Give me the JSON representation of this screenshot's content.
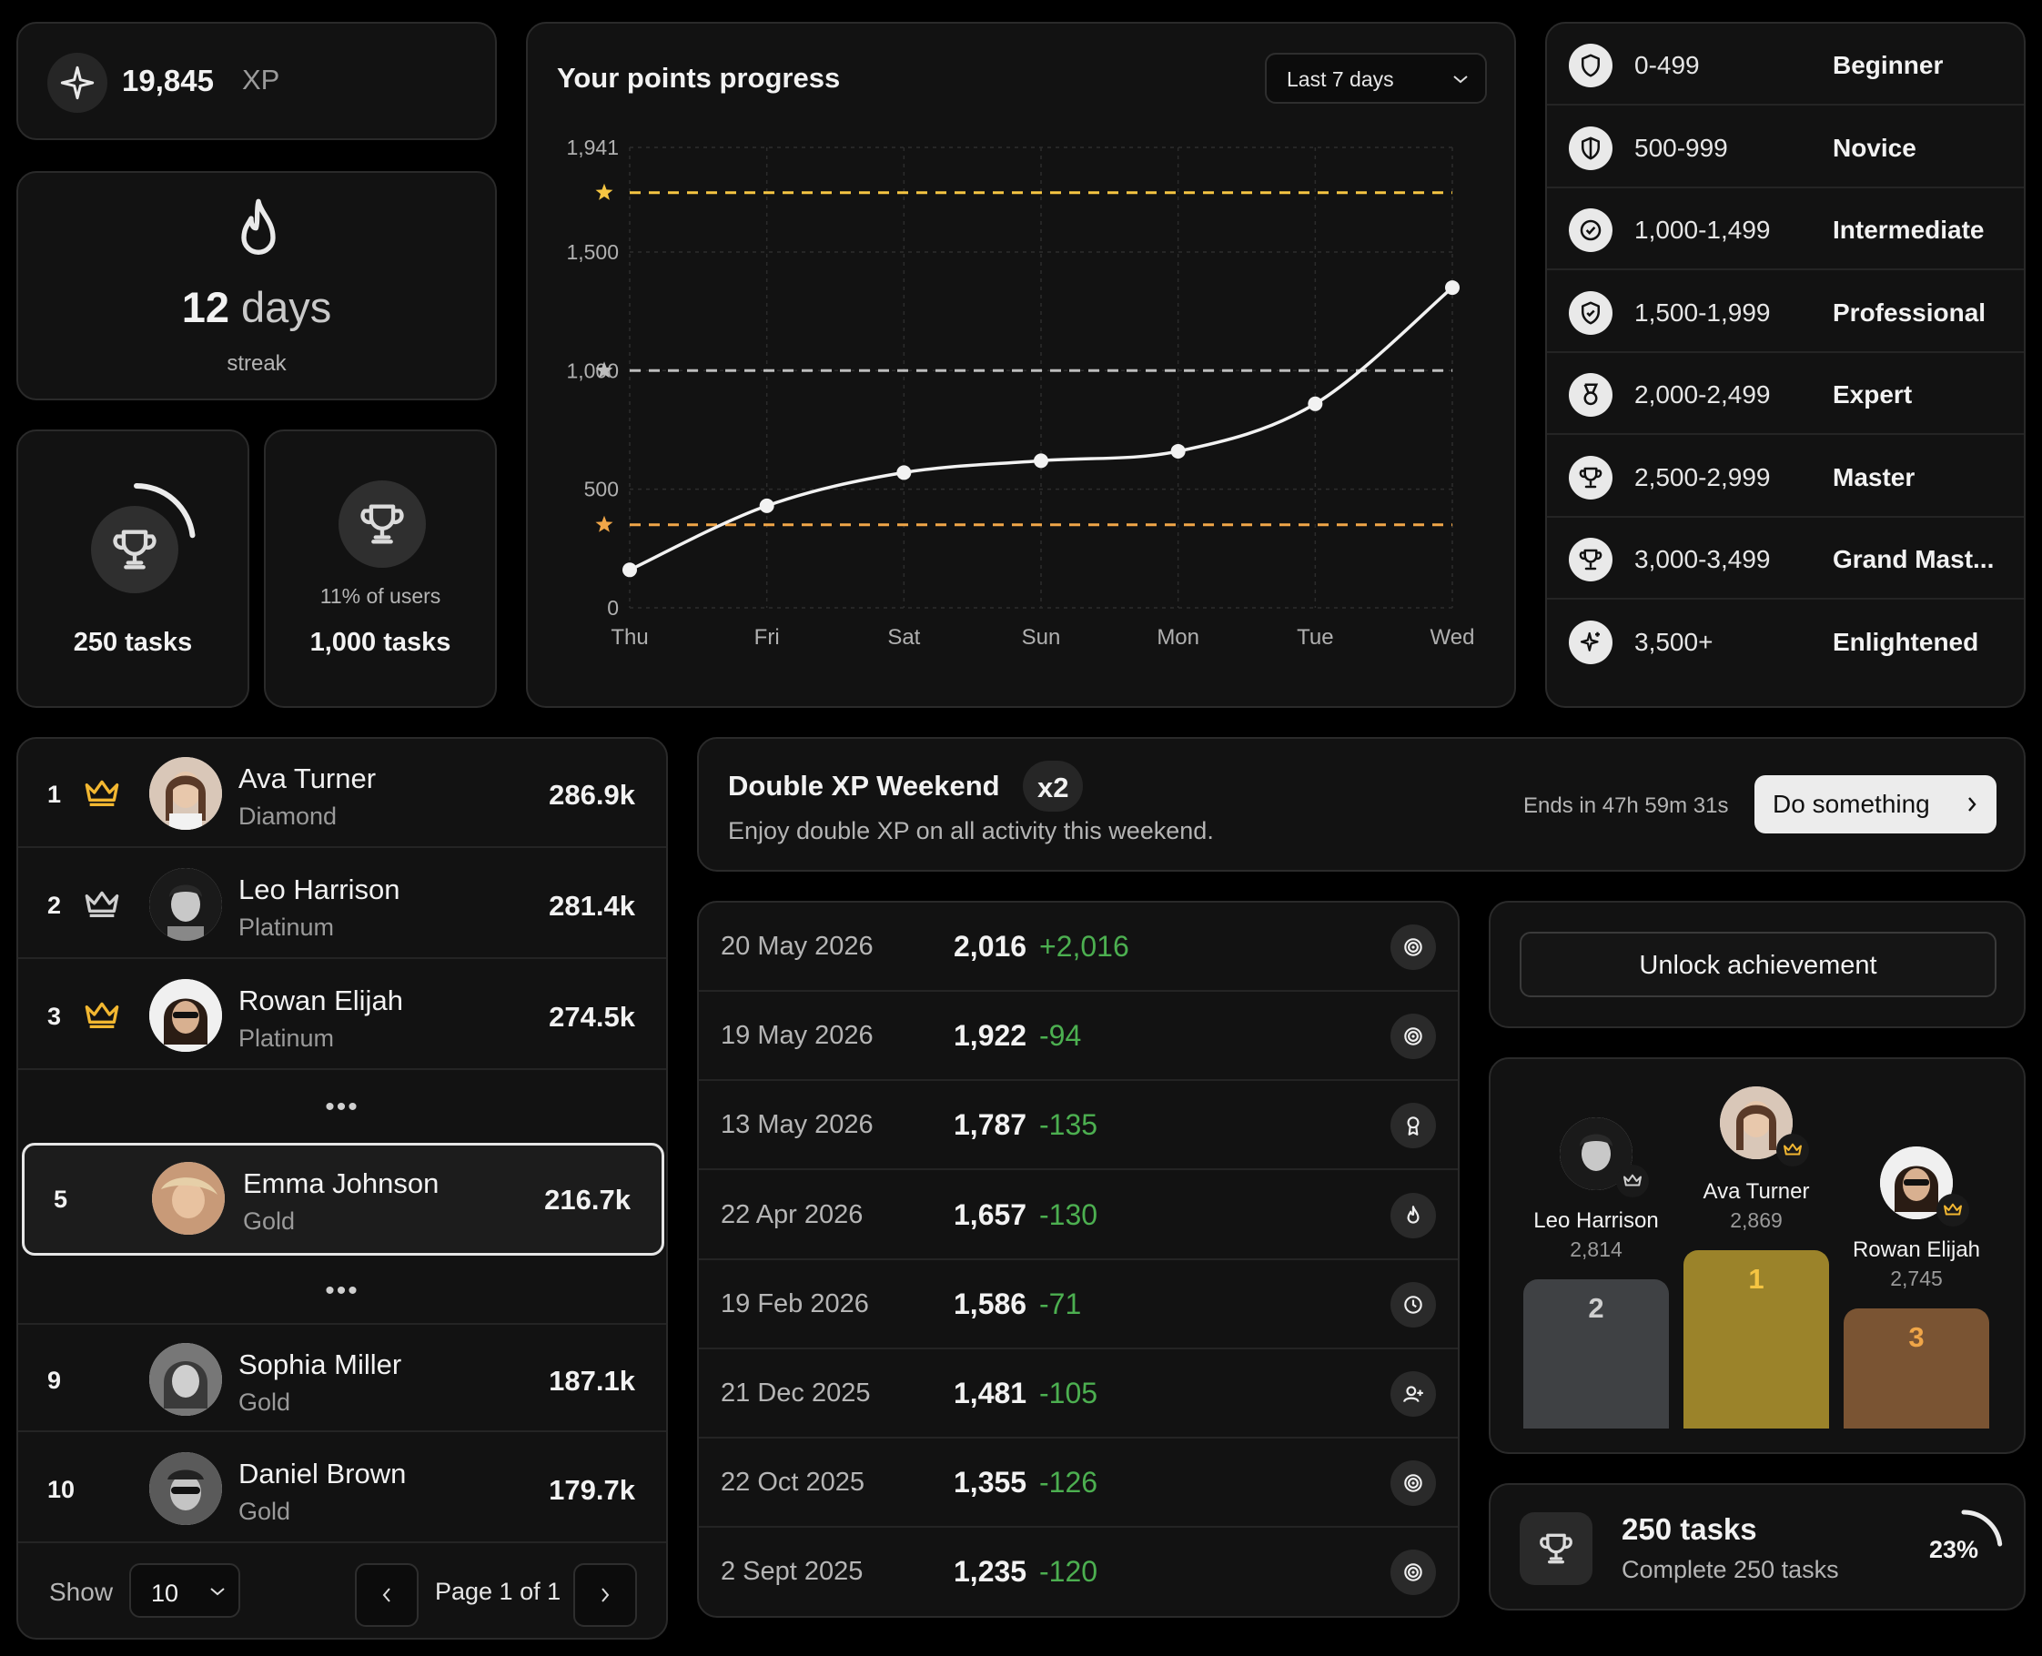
{
  "xp": {
    "value": "19,845",
    "unit": "XP",
    "icon": "sparkle-icon"
  },
  "streak": {
    "number": "12",
    "unit": "days",
    "label": "streak",
    "icon": "flame-icon"
  },
  "tasks": [
    {
      "label": "250 tasks",
      "progress": 0.23,
      "icon": "trophy-icon"
    },
    {
      "label": "1,000 tasks",
      "sub": "11% of users",
      "icon": "trophy-icon"
    }
  ],
  "chart": {
    "title": "Your points progress",
    "range_label": "Last 7 days"
  },
  "chart_data": {
    "type": "line",
    "categories": [
      "Thu",
      "Fri",
      "Sat",
      "Sun",
      "Mon",
      "Tue",
      "Wed"
    ],
    "values": [
      160,
      430,
      570,
      620,
      660,
      860,
      1350
    ],
    "y_ticks": [
      "0",
      "500",
      "1,000",
      "1,500",
      "1,941"
    ],
    "ylim": [
      0,
      1941
    ],
    "reference_lines": [
      {
        "value": 1750,
        "color": "#f5c542"
      },
      {
        "value": 1000,
        "color": "#bdbdbd"
      },
      {
        "value": 350,
        "color": "#f0a648"
      }
    ],
    "grid": true
  },
  "levels": [
    {
      "range": "0-499",
      "name": "Beginner",
      "icon": "shield-icon"
    },
    {
      "range": "500-999",
      "name": "Novice",
      "icon": "half-shield-icon"
    },
    {
      "range": "1,000-1,499",
      "name": "Intermediate",
      "icon": "badge-check-icon"
    },
    {
      "range": "1,500-1,999",
      "name": "Professional",
      "icon": "shield-check-icon"
    },
    {
      "range": "2,000-2,499",
      "name": "Expert",
      "icon": "medal-icon"
    },
    {
      "range": "2,500-2,999",
      "name": "Master",
      "icon": "trophy-icon"
    },
    {
      "range": "3,000-3,499",
      "name": "Grand Mast...",
      "icon": "trophy-icon"
    },
    {
      "range": "3,500+",
      "name": "Enlightened",
      "icon": "sparkles-icon"
    }
  ],
  "leaderboard": {
    "rows": [
      {
        "rank": "1",
        "name": "Ava Turner",
        "tier": "Diamond",
        "score": "286.9k",
        "crown": "#f2b731"
      },
      {
        "rank": "2",
        "name": "Leo Harrison",
        "tier": "Platinum",
        "score": "281.4k",
        "crown": "#cfcfcf"
      },
      {
        "rank": "3",
        "name": "Rowan Elijah",
        "tier": "Platinum",
        "score": "274.5k",
        "crown": "#f2b731"
      }
    ],
    "current": {
      "rank": "5",
      "name": "Emma Johnson",
      "tier": "Gold",
      "score": "216.7k"
    },
    "rows_bottom": [
      {
        "rank": "9",
        "name": "Sophia Miller",
        "tier": "Gold",
        "score": "187.1k"
      },
      {
        "rank": "10",
        "name": "Daniel Brown",
        "tier": "Gold",
        "score": "179.7k"
      }
    ],
    "dots": "•••",
    "show_label": "Show",
    "show_value": "10",
    "page_text": "Page 1 of 1"
  },
  "banner": {
    "title": "Double XP Weekend",
    "badge": "x2",
    "description": "Enjoy double XP on all activity this weekend.",
    "ends": "Ends in 47h 59m 31s",
    "button": "Do something"
  },
  "history": [
    {
      "date": "20 May 2026",
      "value": "2,016",
      "delta": "+2,016",
      "icon": "target-icon"
    },
    {
      "date": "19 May 2026",
      "value": "1,922",
      "delta": "-94",
      "icon": "target-icon"
    },
    {
      "date": "13 May 2026",
      "value": "1,787",
      "delta": "-135",
      "icon": "award-icon"
    },
    {
      "date": "22 Apr 2026",
      "value": "1,657",
      "delta": "-130",
      "icon": "flame-icon"
    },
    {
      "date": "19 Feb 2026",
      "value": "1,586",
      "delta": "-71",
      "icon": "clock-icon"
    },
    {
      "date": "21 Dec 2025",
      "value": "1,481",
      "delta": "-105",
      "icon": "user-plus-icon"
    },
    {
      "date": "22 Oct 2025",
      "value": "1,355",
      "delta": "-126",
      "icon": "target-icon"
    },
    {
      "date": "2 Sept 2025",
      "value": "1,235",
      "delta": "-120",
      "icon": "target-icon"
    }
  ],
  "unlock": {
    "button": "Unlock achievement"
  },
  "podium": {
    "first": {
      "name": "Ava Turner",
      "score": "2,869",
      "place": "1",
      "color": "#9b832a",
      "place_color": "#f5c542"
    },
    "second": {
      "name": "Leo Harrison",
      "score": "2,814",
      "place": "2",
      "color": "#3f4144",
      "place_color": "#cfcfcf"
    },
    "third": {
      "name": "Rowan Elijah",
      "score": "2,745",
      "place": "3",
      "color": "#7a5433",
      "place_color": "#f0a648"
    }
  },
  "goal": {
    "title": "250 tasks",
    "description": "Complete 250 tasks",
    "percent": "23%",
    "progress": 0.23
  }
}
